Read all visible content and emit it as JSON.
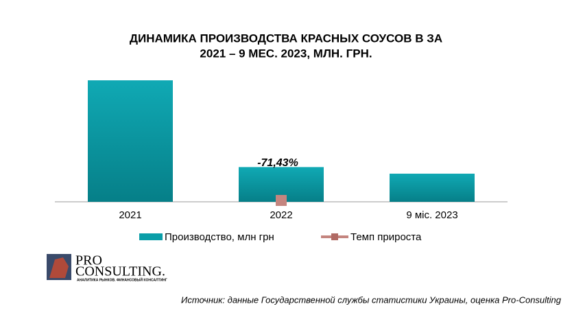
{
  "chart_data": {
    "type": "bar",
    "title": [
      "ДИНАМИКА ПРОИЗВОДСТВА КРАСНЫХ СОУСОВ В ЗА",
      "2021 – 9 МЕС. 2023, МЛН. ГРН."
    ],
    "categories": [
      "2021",
      "2022",
      "9 міс. 2023"
    ],
    "series": [
      {
        "name": "Производство, млн грн",
        "color": "#0a9ea8",
        "values": [
          177,
          50.6,
          41
        ]
      },
      {
        "name": "Темп прироста",
        "color": "#c4857f",
        "values": [
          null,
          -71.43,
          null
        ],
        "value_labels": [
          null,
          "-71,43%",
          null
        ]
      }
    ],
    "legend": "bottom"
  },
  "logo": {
    "name": [
      "PRO",
      "CONSULTING."
    ],
    "tagline": "АНАЛИТИКА РЫНКОВ. ФИНАНСОВЫЙ КОНСАЛТИНГ"
  },
  "source": "Источник: данные Государственной службы статистики Украины, оценка Pro-Consulting"
}
